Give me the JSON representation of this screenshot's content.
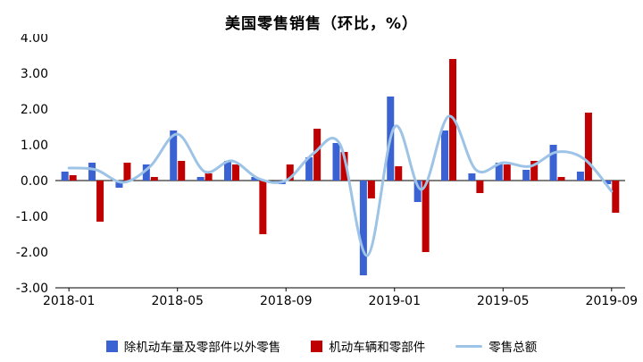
{
  "chart_data": {
    "type": "bar",
    "subtype": "grouped-bars-with-smoothed-line",
    "title": "美国零售销售（环比，%）",
    "x": [
      "2018-01",
      "2018-02",
      "2018-03",
      "2018-04",
      "2018-05",
      "2018-06",
      "2018-07",
      "2018-08",
      "2018-09",
      "2018-10",
      "2018-11",
      "2018-12",
      "2019-01",
      "2019-02",
      "2019-03",
      "2019-04",
      "2019-05",
      "2019-06",
      "2019-07",
      "2019-08",
      "2019-09"
    ],
    "xticks": [
      "2018-01",
      "2018-05",
      "2018-09",
      "2019-01",
      "2019-05",
      "2019-09"
    ],
    "ylim": [
      -3,
      4
    ],
    "yticks": [
      4,
      3,
      2,
      1,
      0,
      -1,
      -2,
      -3
    ],
    "ytick_labels": [
      "4.00",
      "3.00",
      "2.00",
      "1.00",
      "0.00",
      "-1.00",
      "-2.00",
      "-3.00"
    ],
    "grid": false,
    "legend_position": "bottom",
    "axis_color": "#000000",
    "series": [
      {
        "name": "除机动车量及零部件以外零售",
        "type": "bar",
        "color": "#3A62D2",
        "values": [
          0.25,
          0.5,
          -0.2,
          0.45,
          1.4,
          0.1,
          0.55,
          0.1,
          -0.1,
          0.65,
          1.05,
          -2.65,
          2.35,
          -0.6,
          1.4,
          0.2,
          0.5,
          0.3,
          1.0,
          0.25,
          -0.1
        ]
      },
      {
        "name": "机动车辆和零部件",
        "type": "bar",
        "color": "#C00000",
        "values": [
          0.15,
          -1.15,
          0.5,
          0.1,
          0.55,
          0.2,
          0.45,
          -1.5,
          0.45,
          1.45,
          0.8,
          -0.5,
          0.4,
          -2.0,
          3.4,
          -0.35,
          0.45,
          0.55,
          0.1,
          1.9,
          -0.9
        ]
      },
      {
        "name": "零售总额",
        "type": "line",
        "color": "#9DC3E6",
        "values": [
          0.35,
          0.3,
          -0.05,
          0.4,
          1.3,
          0.25,
          0.55,
          0.05,
          0.0,
          0.75,
          1.0,
          -2.1,
          1.5,
          -0.25,
          1.8,
          0.3,
          0.5,
          0.4,
          0.8,
          0.6,
          -0.3
        ]
      }
    ]
  }
}
